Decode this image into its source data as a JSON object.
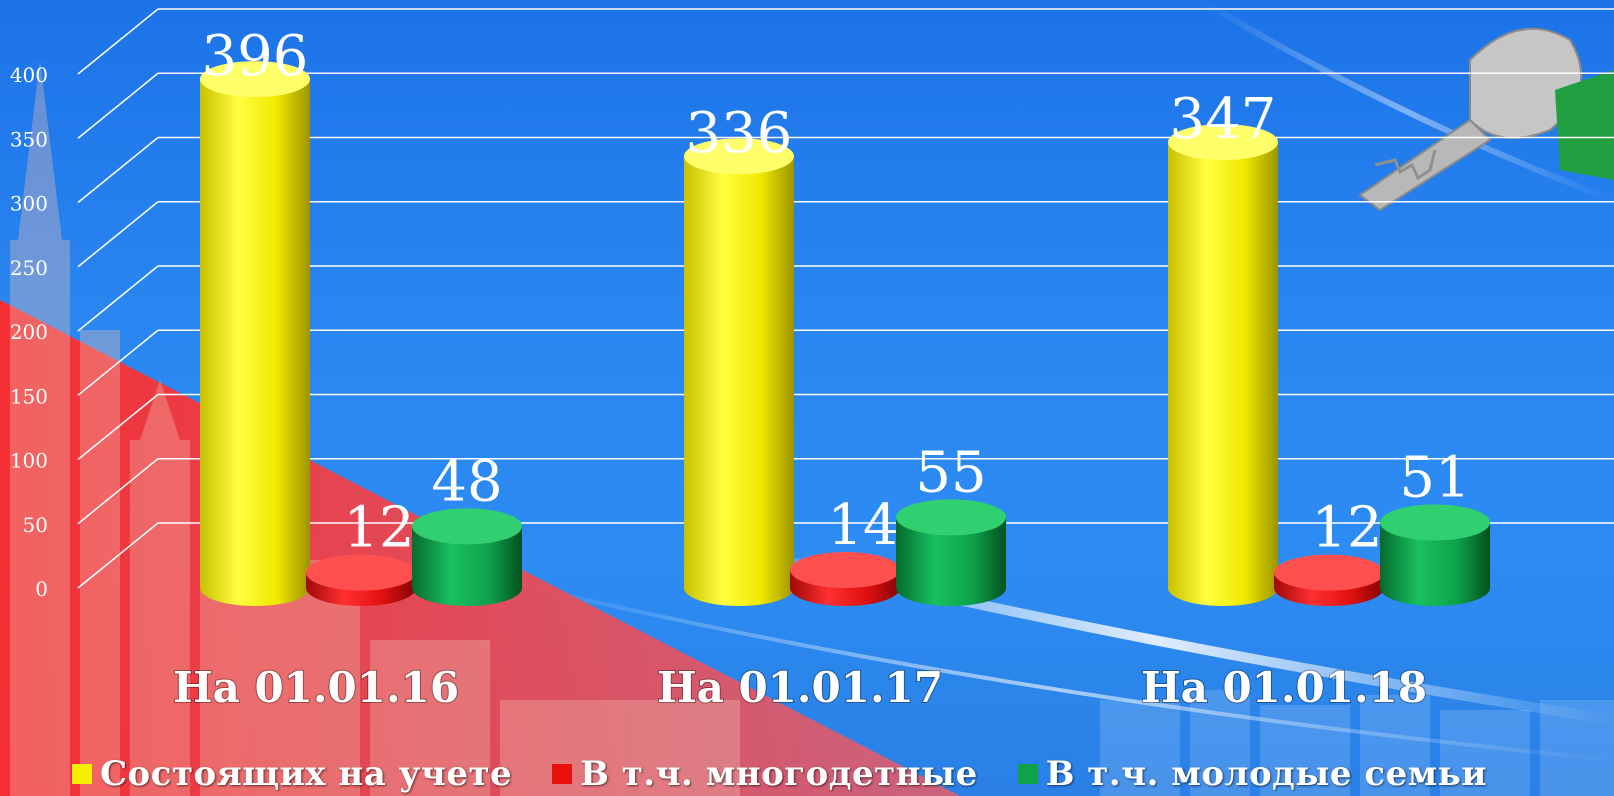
{
  "chart_data": {
    "type": "bar",
    "categories": [
      "На 01.01.16",
      "На 01.01.17",
      "На 01.01.18"
    ],
    "series": [
      {
        "name": "Состоящих на учете",
        "values": [
          396,
          336,
          347
        ],
        "color": "#f4f000"
      },
      {
        "name": "В т.ч. многодетные",
        "values": [
          12,
          14,
          12
        ],
        "color": "#e8100c"
      },
      {
        "name": "В т.ч. молодые семьи",
        "values": [
          48,
          55,
          51
        ],
        "color": "#0ea24a"
      }
    ],
    "yticks": [
      0,
      50,
      100,
      150,
      200,
      250,
      300,
      350,
      400
    ],
    "ylim": [
      0,
      450
    ],
    "grid": true,
    "legend_position": "bottom",
    "bar_style": "3d-cylinder"
  },
  "colors": {
    "background": "#2a86f0",
    "flag_red": "#ff3c3c",
    "gridline": "#ffffff",
    "label": "#ffffff"
  },
  "decor": {
    "background_icons": [
      "city-building-photo",
      "key-icon",
      "flag-icon"
    ]
  }
}
